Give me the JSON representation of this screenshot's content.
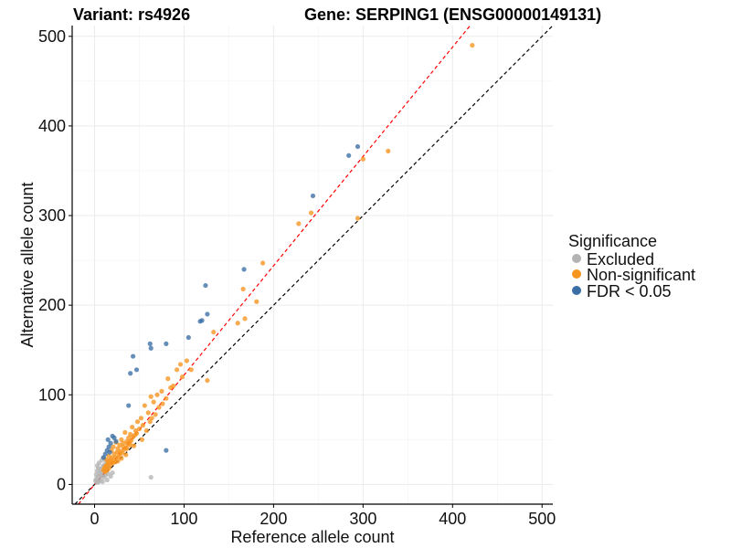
{
  "chart_data": {
    "type": "scatter",
    "title_left": "Variant: rs4926",
    "title_right": "Gene: SERPING1 (ENSG00000149131)",
    "xlabel": "Reference allele count",
    "ylabel": "Alternative allele count",
    "xlim": [
      -25,
      512
    ],
    "ylim": [
      -22,
      512
    ],
    "x_ticks": [
      0,
      100,
      200,
      300,
      400,
      500
    ],
    "y_ticks": [
      0,
      100,
      200,
      300,
      400,
      500
    ],
    "grid": true,
    "legend": {
      "title": "Significance",
      "position": "right",
      "entries": [
        "Excluded",
        "Non-significant",
        "FDR < 0.05"
      ]
    },
    "colors": {
      "Excluded": "#b3b3b3",
      "Non-significant": "#f7941d",
      "FDR < 0.05": "#3a6ea5"
    },
    "reference_lines": [
      {
        "name": "identity",
        "slope": 1.0,
        "intercept": 0,
        "color": "#000000",
        "dash": "dashed"
      },
      {
        "name": "fit",
        "slope": 1.22,
        "intercept": 0,
        "color": "#ff0000",
        "dash": "dashed"
      }
    ],
    "series": [
      {
        "name": "Excluded",
        "points": [
          [
            63,
            8
          ],
          [
            3,
            2
          ],
          [
            5,
            3
          ],
          [
            2,
            6
          ],
          [
            4,
            9
          ],
          [
            6,
            12
          ],
          [
            8,
            14
          ],
          [
            3,
            15
          ],
          [
            7,
            17
          ],
          [
            9,
            20
          ],
          [
            11,
            22
          ],
          [
            5,
            24
          ],
          [
            2,
            11
          ],
          [
            10,
            8
          ],
          [
            12,
            10
          ],
          [
            14,
            5
          ],
          [
            6,
            5
          ],
          [
            4,
            18
          ],
          [
            8,
            27
          ],
          [
            12,
            16
          ],
          [
            15,
            12
          ],
          [
            18,
            9
          ],
          [
            20,
            13
          ],
          [
            16,
            20
          ],
          [
            13,
            26
          ],
          [
            3,
            21
          ],
          [
            1,
            4
          ],
          [
            9,
            3
          ],
          [
            10,
            30
          ],
          [
            7,
            10
          ]
        ]
      },
      {
        "name": "Non-significant",
        "points": [
          [
            422,
            490
          ],
          [
            300,
            363
          ],
          [
            328,
            372
          ],
          [
            294,
            297
          ],
          [
            242,
            303
          ],
          [
            228,
            291
          ],
          [
            188,
            247
          ],
          [
            166,
            218
          ],
          [
            181,
            204
          ],
          [
            168,
            185
          ],
          [
            160,
            180
          ],
          [
            133,
            170
          ],
          [
            126,
            116
          ],
          [
            103,
            138
          ],
          [
            96,
            134
          ],
          [
            92,
            128
          ],
          [
            82,
            118
          ],
          [
            85,
            108
          ],
          [
            75,
            104
          ],
          [
            70,
            100
          ],
          [
            66,
            92
          ],
          [
            63,
            98
          ],
          [
            72,
            86
          ],
          [
            60,
            80
          ],
          [
            56,
            88
          ],
          [
            52,
            74
          ],
          [
            54,
            66
          ],
          [
            48,
            70
          ],
          [
            46,
            60
          ],
          [
            42,
            64
          ],
          [
            40,
            56
          ],
          [
            38,
            52
          ],
          [
            36,
            48
          ],
          [
            34,
            58
          ],
          [
            32,
            46
          ],
          [
            30,
            50
          ],
          [
            28,
            44
          ],
          [
            26,
            40
          ],
          [
            25,
            36
          ],
          [
            24,
            47
          ],
          [
            22,
            34
          ],
          [
            21,
            42
          ],
          [
            20,
            30
          ],
          [
            19,
            38
          ],
          [
            18,
            28
          ],
          [
            17,
            26
          ],
          [
            16,
            32
          ],
          [
            15,
            24
          ],
          [
            14,
            22
          ],
          [
            13,
            28
          ],
          [
            12,
            20
          ],
          [
            11,
            18
          ],
          [
            10,
            16
          ],
          [
            23,
            25
          ],
          [
            27,
            31
          ],
          [
            29,
            37
          ],
          [
            31,
            35
          ],
          [
            33,
            39
          ],
          [
            35,
            41
          ],
          [
            37,
            45
          ],
          [
            39,
            47
          ],
          [
            41,
            49
          ],
          [
            43,
            53
          ],
          [
            45,
            55
          ],
          [
            47,
            57
          ],
          [
            50,
            62
          ],
          [
            53,
            50
          ],
          [
            58,
            60
          ],
          [
            62,
            70
          ],
          [
            64,
            74
          ],
          [
            68,
            78
          ],
          [
            76,
            90
          ],
          [
            80,
            96
          ],
          [
            88,
            110
          ],
          [
            98,
            120
          ],
          [
            108,
            128
          ],
          [
            44,
            43
          ],
          [
            26,
            26
          ],
          [
            30,
            29
          ],
          [
            35,
            33
          ],
          [
            20,
            24
          ],
          [
            24,
            30
          ],
          [
            28,
            34
          ],
          [
            32,
            42
          ],
          [
            36,
            40
          ],
          [
            40,
            44
          ],
          [
            18,
            22
          ],
          [
            22,
            26
          ],
          [
            16,
            18
          ],
          [
            14,
            16
          ],
          [
            12,
            14
          ]
        ]
      },
      {
        "name": "FDR < 0.05",
        "points": [
          [
            294,
            377
          ],
          [
            284,
            367
          ],
          [
            244,
            322
          ],
          [
            167,
            240
          ],
          [
            124,
            222
          ],
          [
            126,
            190
          ],
          [
            120,
            183
          ],
          [
            118,
            182
          ],
          [
            105,
            164
          ],
          [
            80,
            157
          ],
          [
            62,
            157
          ],
          [
            63,
            152
          ],
          [
            43,
            143
          ],
          [
            47,
            128
          ],
          [
            40,
            124
          ],
          [
            80,
            38
          ],
          [
            38,
            88
          ],
          [
            20,
            54
          ],
          [
            18,
            46
          ],
          [
            16,
            42
          ],
          [
            14,
            38
          ],
          [
            12,
            34
          ],
          [
            10,
            30
          ],
          [
            22,
            52
          ],
          [
            24,
            48
          ],
          [
            15,
            50
          ],
          [
            17,
            36
          ]
        ]
      }
    ]
  }
}
